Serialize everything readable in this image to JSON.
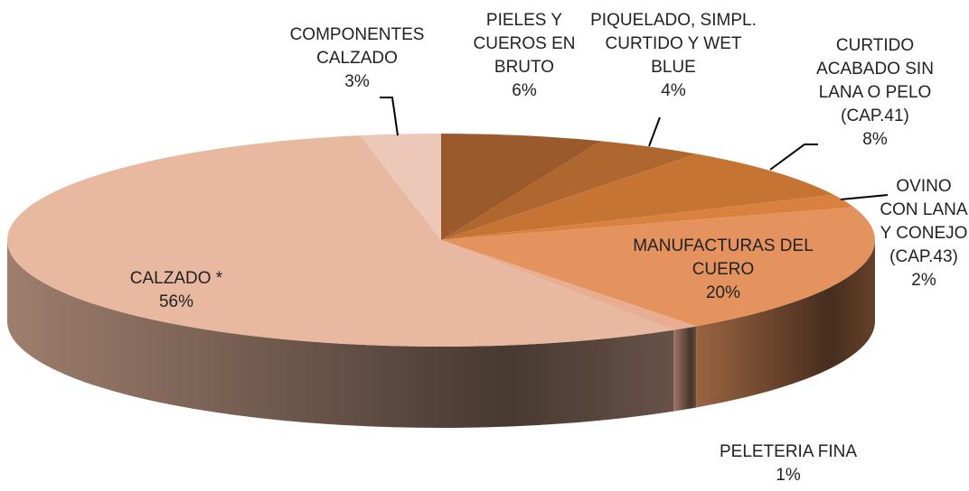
{
  "chart_data": {
    "type": "pie",
    "categories": [
      "PIELES Y CUEROS EN BRUTO",
      "PIQUELADO, SIMPL. CURTIDO Y WET BLUE",
      "CURTIDO ACABADO SIN LANA O PELO (CAP.41)",
      "OVINO CON LANA Y CONEJO (CAP.43)",
      "MANUFACTURAS DEL CUERO",
      "PELETERIA FINA",
      "CALZADO *",
      "COMPONENTES CALZADO"
    ],
    "values": [
      6,
      4,
      8,
      2,
      20,
      1,
      56,
      3
    ],
    "value_labels": [
      "6%",
      "4%",
      "8%",
      "2%",
      "20%",
      "1%",
      "56%",
      "3%"
    ],
    "colors": [
      "#9a5a2c",
      "#b0662f",
      "#c57434",
      "#d9823f",
      "#e4935f",
      "#e9ae92",
      "#e8b9a0",
      "#ecc8b9"
    ]
  }
}
